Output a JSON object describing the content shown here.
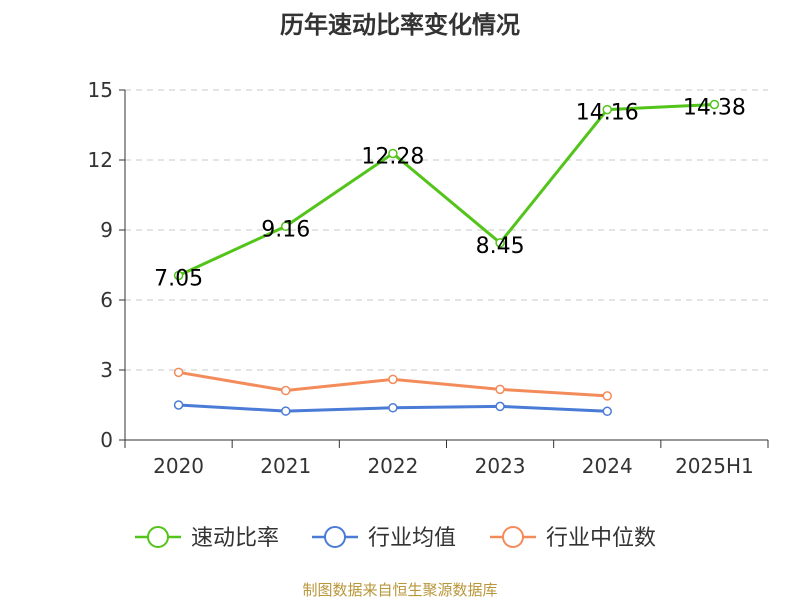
{
  "chart_data": {
    "type": "line",
    "title": "历年速动比率变化情况",
    "categories": [
      "2020",
      "2021",
      "2022",
      "2023",
      "2024",
      "2025H1"
    ],
    "ylim": [
      0,
      15
    ],
    "yticks": [
      "0",
      "3",
      "6",
      "9",
      "12",
      "15"
    ],
    "grid": true,
    "legend_position": "bottom",
    "series": [
      {
        "name": "速动比率",
        "color": "#52c41a",
        "values": [
          7.05,
          9.16,
          12.28,
          8.45,
          14.16,
          14.38
        ],
        "labels": [
          "7.05",
          "9.16",
          "12.28",
          "8.45",
          "14.16",
          "14.38"
        ]
      },
      {
        "name": "行业均值",
        "color": "#4a7bd6",
        "values": [
          1.5,
          1.24,
          1.38,
          1.44,
          1.23,
          null
        ]
      },
      {
        "name": "行业中位数",
        "color": "#f38b5a",
        "values": [
          2.9,
          2.12,
          2.6,
          2.17,
          1.89,
          null
        ]
      }
    ]
  },
  "footer": {
    "source": "制图数据来自恒生聚源数据库"
  }
}
